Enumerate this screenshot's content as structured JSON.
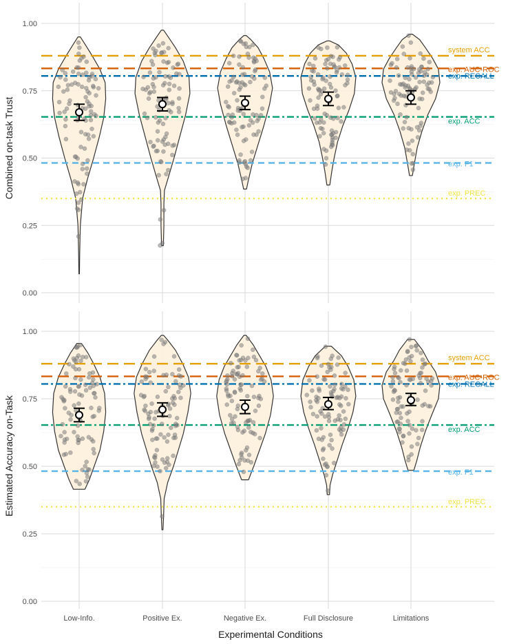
{
  "chart_data": {
    "type": "violin",
    "xlabel": "Experimental Conditions",
    "categories": [
      "Low-Info.",
      "Positive Ex.",
      "Negative Ex.",
      "Full Disclosure",
      "Limitations"
    ],
    "colors": {
      "violin_fill": "#fdf0dd",
      "violin_stroke": "#333333",
      "point": "#7f7f7f",
      "grid": "#d9d9d9",
      "system_acc": "#e69f00",
      "exp_auc_roc": "#d55e00",
      "exp_recall": "#0072b2",
      "exp_acc": "#009e73",
      "exp_f1": "#56b4e9",
      "exp_prec": "#f0e442"
    },
    "panels": [
      {
        "ylabel": "Combined on-task Trust",
        "ylim": [
          0,
          1
        ],
        "yticks": [
          "0.00",
          "0.25",
          "0.50",
          "0.75",
          "1.00"
        ],
        "reference_lines": [
          {
            "label": "system ACC",
            "value": 0.88,
            "color_key": "system_acc",
            "dash": "long"
          },
          {
            "label": "exp. AUC-ROC",
            "value": 0.833,
            "color_key": "exp_auc_roc",
            "dash": "long"
          },
          {
            "label": "exp. RECALL",
            "value": 0.805,
            "color_key": "exp_recall",
            "dash": "dashdot"
          },
          {
            "label": "exp. ACC",
            "value": 0.653,
            "color_key": "exp_acc",
            "dash": "dashdot"
          },
          {
            "label": "exp. F1",
            "value": 0.482,
            "color_key": "exp_f1",
            "dash": "dash"
          },
          {
            "label": "exp. PREC",
            "value": 0.35,
            "color_key": "exp_prec",
            "dash": "dot"
          }
        ],
        "groups": [
          {
            "name": "Low-Info.",
            "mean": 0.67,
            "ci": [
              0.64,
              0.7
            ],
            "min": 0.07,
            "max": 0.95,
            "density": [
              [
                0.07,
                0.01
              ],
              [
                0.15,
                0.02
              ],
              [
                0.25,
                0.04
              ],
              [
                0.35,
                0.12
              ],
              [
                0.42,
                0.28
              ],
              [
                0.5,
                0.5
              ],
              [
                0.58,
                0.7
              ],
              [
                0.65,
                0.85
              ],
              [
                0.72,
                0.92
              ],
              [
                0.78,
                0.9
              ],
              [
                0.83,
                0.72
              ],
              [
                0.88,
                0.45
              ],
              [
                0.92,
                0.22
              ],
              [
                0.95,
                0.04
              ]
            ]
          },
          {
            "name": "Positive Ex.",
            "mean": 0.7,
            "ci": [
              0.675,
              0.725
            ],
            "min": 0.175,
            "max": 0.975,
            "density": [
              [
                0.175,
                0.03
              ],
              [
                0.25,
                0.05
              ],
              [
                0.33,
                0.05
              ],
              [
                0.38,
                0.07
              ],
              [
                0.42,
                0.18
              ],
              [
                0.5,
                0.4
              ],
              [
                0.58,
                0.6
              ],
              [
                0.66,
                0.8
              ],
              [
                0.74,
                0.95
              ],
              [
                0.8,
                0.92
              ],
              [
                0.86,
                0.72
              ],
              [
                0.91,
                0.45
              ],
              [
                0.95,
                0.2
              ],
              [
                0.975,
                0.04
              ]
            ]
          },
          {
            "name": "Negative Ex.",
            "mean": 0.705,
            "ci": [
              0.68,
              0.73
            ],
            "min": 0.385,
            "max": 0.955,
            "density": [
              [
                0.385,
                0.05
              ],
              [
                0.42,
                0.12
              ],
              [
                0.48,
                0.25
              ],
              [
                0.55,
                0.45
              ],
              [
                0.62,
                0.65
              ],
              [
                0.7,
                0.85
              ],
              [
                0.76,
                0.95
              ],
              [
                0.82,
                0.85
              ],
              [
                0.87,
                0.65
              ],
              [
                0.91,
                0.45
              ],
              [
                0.94,
                0.2
              ],
              [
                0.955,
                0.04
              ]
            ]
          },
          {
            "name": "Full Disclosure",
            "mean": 0.72,
            "ci": [
              0.695,
              0.745
            ],
            "min": 0.4,
            "max": 0.935,
            "density": [
              [
                0.4,
                0.05
              ],
              [
                0.45,
                0.12
              ],
              [
                0.5,
                0.2
              ],
              [
                0.56,
                0.32
              ],
              [
                0.62,
                0.5
              ],
              [
                0.68,
                0.72
              ],
              [
                0.74,
                0.9
              ],
              [
                0.8,
                0.95
              ],
              [
                0.85,
                0.82
              ],
              [
                0.89,
                0.62
              ],
              [
                0.92,
                0.35
              ],
              [
                0.935,
                0.05
              ]
            ]
          },
          {
            "name": "Limitations",
            "mean": 0.725,
            "ci": [
              0.7,
              0.75
            ],
            "min": 0.435,
            "max": 0.96,
            "density": [
              [
                0.435,
                0.05
              ],
              [
                0.48,
                0.12
              ],
              [
                0.54,
                0.22
              ],
              [
                0.6,
                0.38
              ],
              [
                0.66,
                0.58
              ],
              [
                0.72,
                0.85
              ],
              [
                0.78,
                1.0
              ],
              [
                0.83,
                0.95
              ],
              [
                0.87,
                0.75
              ],
              [
                0.91,
                0.5
              ],
              [
                0.94,
                0.3
              ],
              [
                0.96,
                0.05
              ]
            ]
          }
        ]
      },
      {
        "ylabel": "Estimated Accuracy on-Task",
        "ylim": [
          0,
          1
        ],
        "yticks": [
          "0.00",
          "0.25",
          "0.50",
          "0.75",
          "1.00"
        ],
        "reference_lines": [
          {
            "label": "system ACC",
            "value": 0.88,
            "color_key": "system_acc",
            "dash": "long"
          },
          {
            "label": "exp. AUC-ROC",
            "value": 0.833,
            "color_key": "exp_auc_roc",
            "dash": "long"
          },
          {
            "label": "exp. RECALL",
            "value": 0.805,
            "color_key": "exp_recall",
            "dash": "dashdot"
          },
          {
            "label": "exp. ACC",
            "value": 0.653,
            "color_key": "exp_acc",
            "dash": "dashdot"
          },
          {
            "label": "exp. F1",
            "value": 0.482,
            "color_key": "exp_f1",
            "dash": "dash"
          },
          {
            "label": "exp. PREC",
            "value": 0.35,
            "color_key": "exp_prec",
            "dash": "dot"
          }
        ],
        "groups": [
          {
            "name": "Low-Info.",
            "mean": 0.69,
            "ci": [
              0.665,
              0.715
            ],
            "min": 0.415,
            "max": 0.955,
            "density": [
              [
                0.415,
                0.2
              ],
              [
                0.45,
                0.35
              ],
              [
                0.5,
                0.52
              ],
              [
                0.56,
                0.72
              ],
              [
                0.63,
                0.85
              ],
              [
                0.7,
                0.92
              ],
              [
                0.77,
                0.88
              ],
              [
                0.83,
                0.72
              ],
              [
                0.88,
                0.5
              ],
              [
                0.92,
                0.3
              ],
              [
                0.955,
                0.08
              ]
            ]
          },
          {
            "name": "Positive Ex.",
            "mean": 0.71,
            "ci": [
              0.685,
              0.735
            ],
            "min": 0.265,
            "max": 0.985,
            "density": [
              [
                0.265,
                0.02
              ],
              [
                0.32,
                0.04
              ],
              [
                0.38,
                0.06
              ],
              [
                0.44,
                0.18
              ],
              [
                0.5,
                0.38
              ],
              [
                0.56,
                0.55
              ],
              [
                0.62,
                0.72
              ],
              [
                0.7,
                0.88
              ],
              [
                0.77,
                0.98
              ],
              [
                0.83,
                0.9
              ],
              [
                0.88,
                0.7
              ],
              [
                0.93,
                0.45
              ],
              [
                0.965,
                0.2
              ],
              [
                0.985,
                0.04
              ]
            ]
          },
          {
            "name": "Negative Ex.",
            "mean": 0.72,
            "ci": [
              0.695,
              0.745
            ],
            "min": 0.45,
            "max": 0.985,
            "density": [
              [
                0.45,
                0.12
              ],
              [
                0.5,
                0.3
              ],
              [
                0.56,
                0.5
              ],
              [
                0.62,
                0.7
              ],
              [
                0.69,
                0.88
              ],
              [
                0.76,
                0.98
              ],
              [
                0.82,
                0.9
              ],
              [
                0.87,
                0.72
              ],
              [
                0.91,
                0.5
              ],
              [
                0.95,
                0.28
              ],
              [
                0.985,
                0.04
              ]
            ]
          },
          {
            "name": "Full Disclosure",
            "mean": 0.73,
            "ci": [
              0.71,
              0.755
            ],
            "min": 0.395,
            "max": 0.945,
            "density": [
              [
                0.395,
                0.04
              ],
              [
                0.43,
                0.06
              ],
              [
                0.47,
                0.15
              ],
              [
                0.52,
                0.3
              ],
              [
                0.58,
                0.48
              ],
              [
                0.64,
                0.68
              ],
              [
                0.7,
                0.85
              ],
              [
                0.76,
                0.95
              ],
              [
                0.82,
                0.88
              ],
              [
                0.87,
                0.68
              ],
              [
                0.91,
                0.45
              ],
              [
                0.945,
                0.1
              ]
            ]
          },
          {
            "name": "Limitations",
            "mean": 0.745,
            "ci": [
              0.725,
              0.77
            ],
            "min": 0.485,
            "max": 0.97,
            "density": [
              [
                0.485,
                0.1
              ],
              [
                0.52,
                0.2
              ],
              [
                0.57,
                0.32
              ],
              [
                0.63,
                0.5
              ],
              [
                0.69,
                0.72
              ],
              [
                0.75,
                0.95
              ],
              [
                0.8,
                1.0
              ],
              [
                0.85,
                0.85
              ],
              [
                0.89,
                0.6
              ],
              [
                0.93,
                0.4
              ],
              [
                0.97,
                0.12
              ]
            ]
          }
        ]
      }
    ]
  }
}
